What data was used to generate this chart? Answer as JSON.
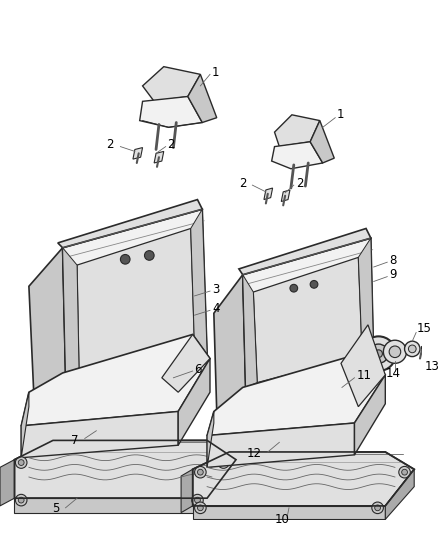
{
  "bg_color": "#ffffff",
  "line_color": "#2a2a2a",
  "label_color": "#000000",
  "fs": 8.5,
  "figsize": [
    4.38,
    5.33
  ],
  "dpi": 100,
  "gray1": "#f2f2f2",
  "gray2": "#e0e0e0",
  "gray3": "#c8c8c8",
  "gray4": "#aaaaaa",
  "gray5": "#888888"
}
